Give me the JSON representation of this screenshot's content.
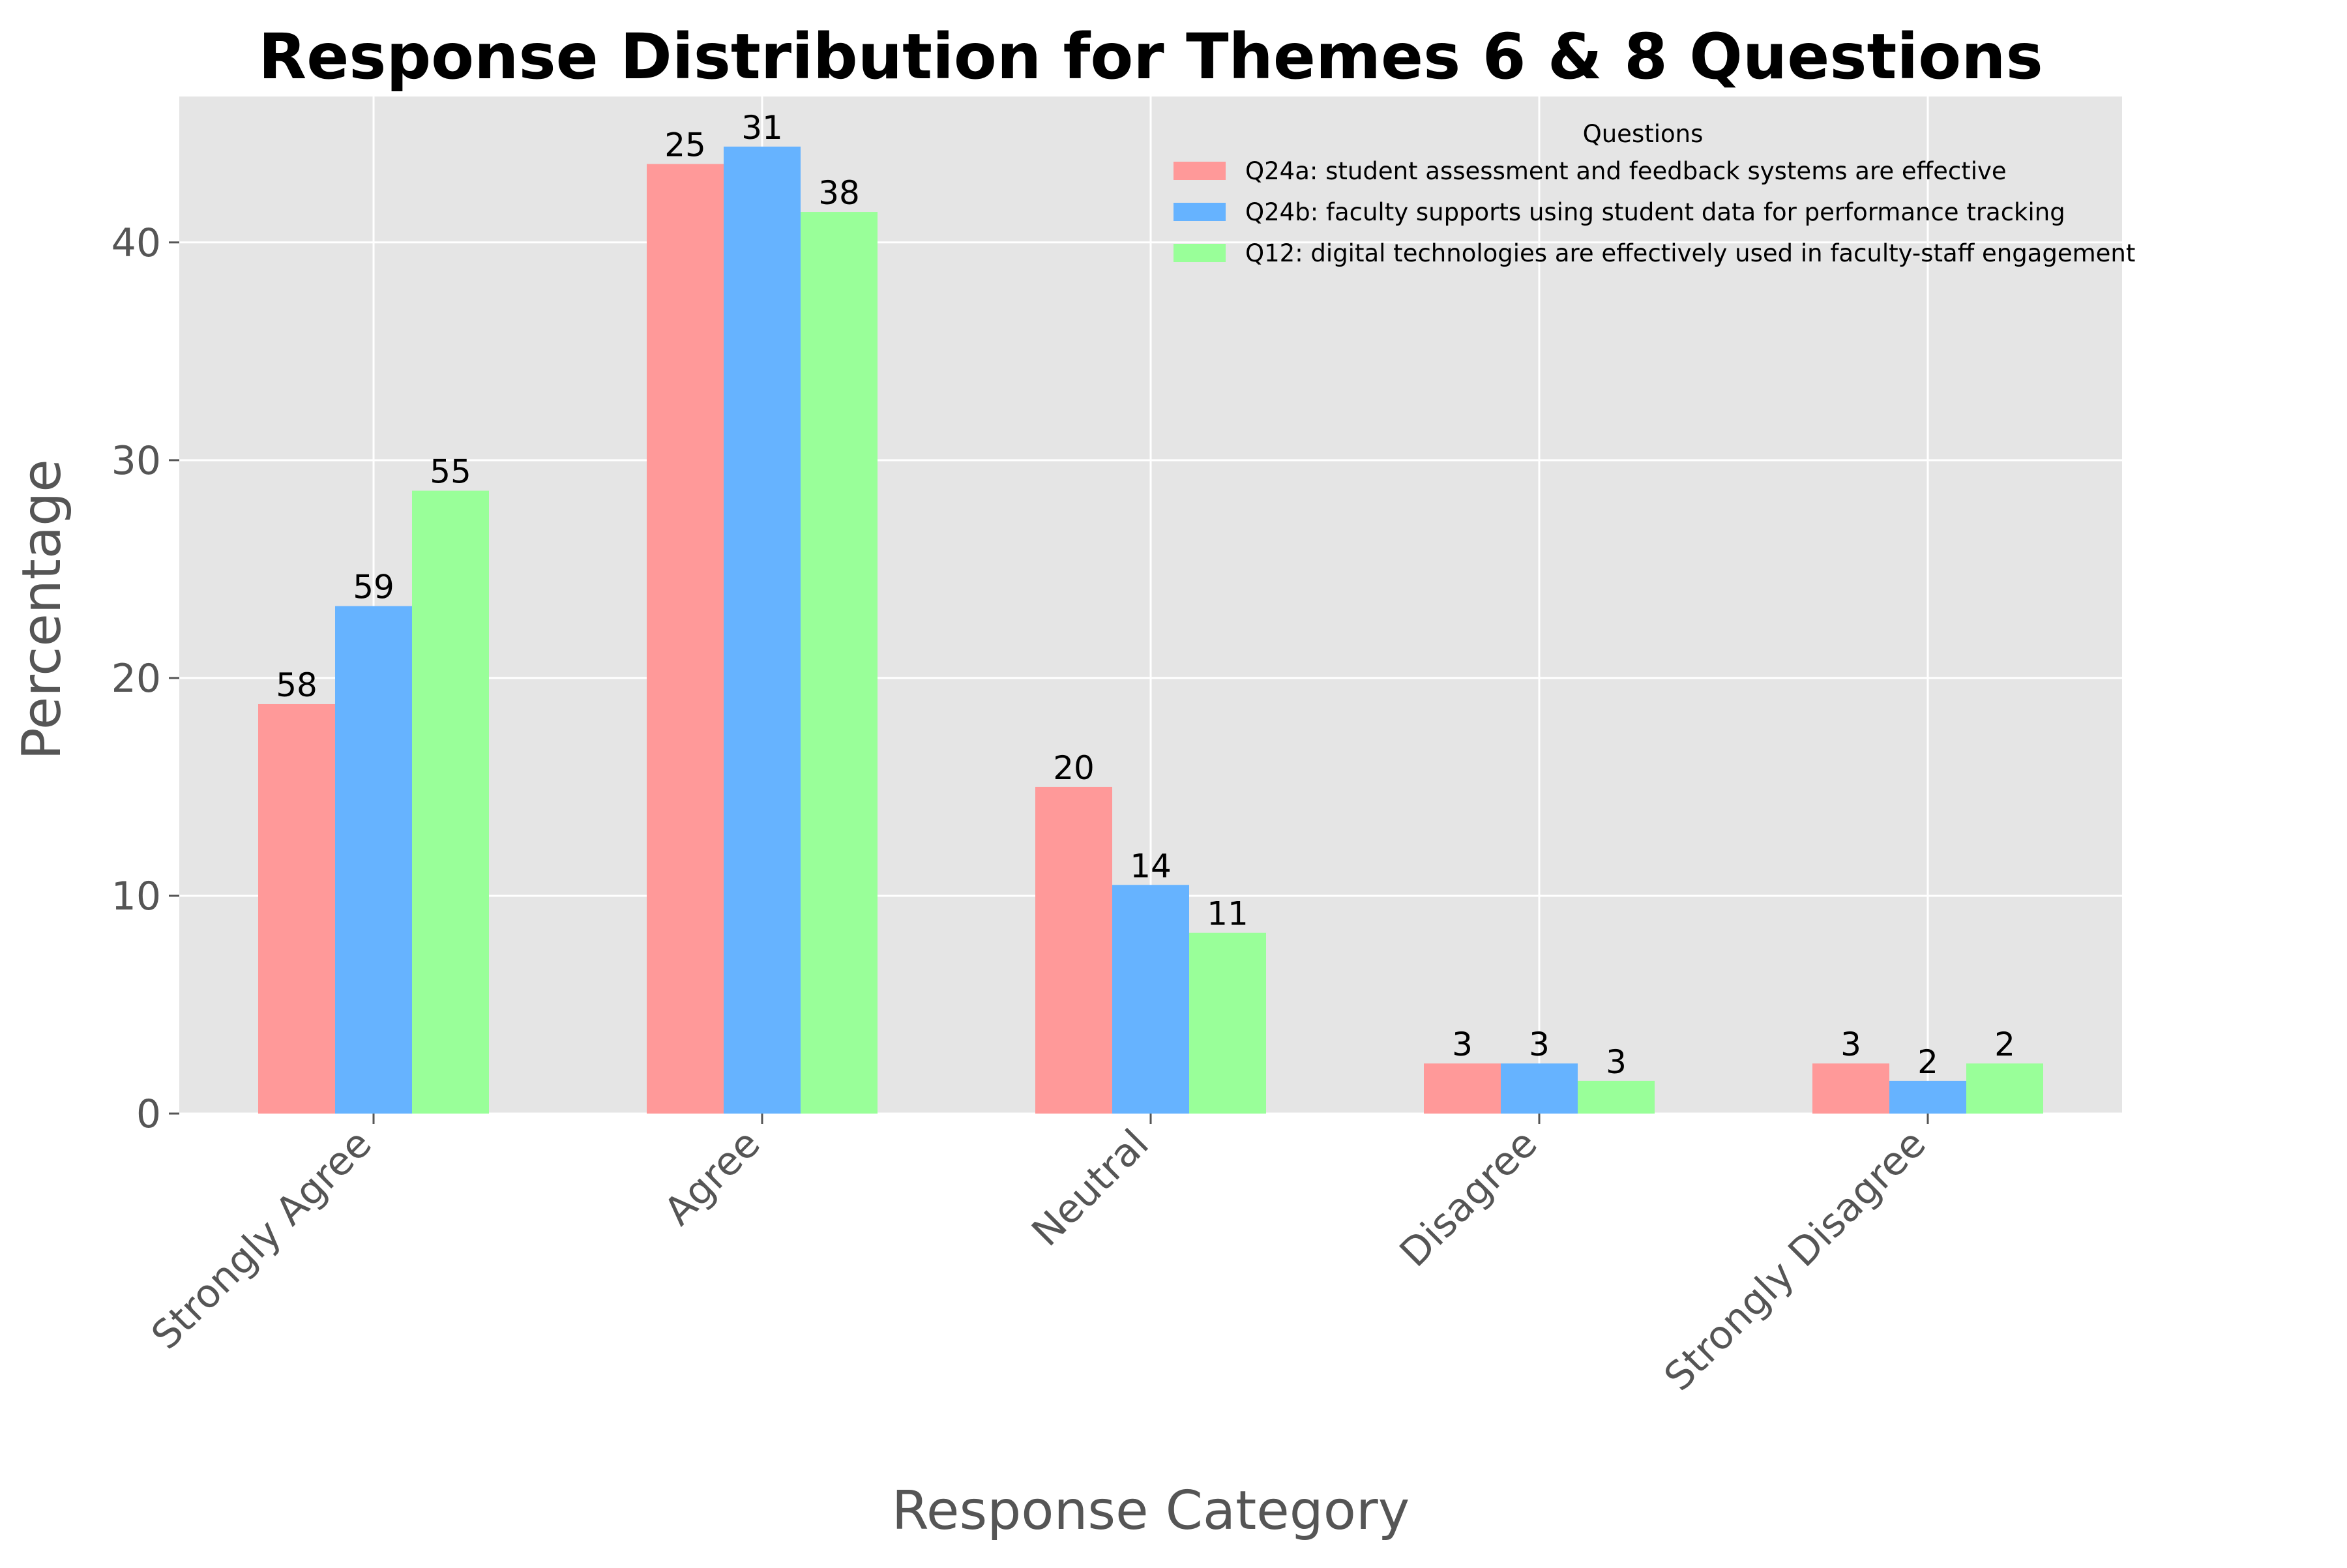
{
  "chart_data": {
    "type": "bar",
    "title": "Response Distribution for Themes 6 & 8 Questions",
    "xlabel": "Response Category",
    "ylabel": "Percentage",
    "ylim": [
      0,
      46.7
    ],
    "yticks": [
      0,
      10,
      20,
      30,
      40
    ],
    "grid": true,
    "legend_title": "Questions",
    "legend_position": "top-right",
    "categories": [
      "Strongly Agree",
      "Agree",
      "Neutral",
      "Disagree",
      "Strongly Disagree"
    ],
    "series": [
      {
        "name": "Q24a: student assessment and feedback systems are effective",
        "color": "#ff9999",
        "values": [
          18.8,
          43.6,
          15.0,
          2.3,
          2.3
        ],
        "labels": [
          "58",
          "25",
          "20",
          "3",
          "3"
        ]
      },
      {
        "name": "Q24b: faculty supports using student data for performance tracking",
        "color": "#66b3ff",
        "values": [
          23.3,
          44.4,
          10.5,
          2.3,
          1.5
        ],
        "labels": [
          "59",
          "31",
          "14",
          "3",
          "2"
        ]
      },
      {
        "name": "Q12: digital technologies are effectively used in faculty-staff engagement",
        "color": "#99ff99",
        "values": [
          28.6,
          41.4,
          8.3,
          1.5,
          2.3
        ],
        "labels": [
          "55",
          "38",
          "11",
          "3",
          "2"
        ]
      }
    ]
  }
}
